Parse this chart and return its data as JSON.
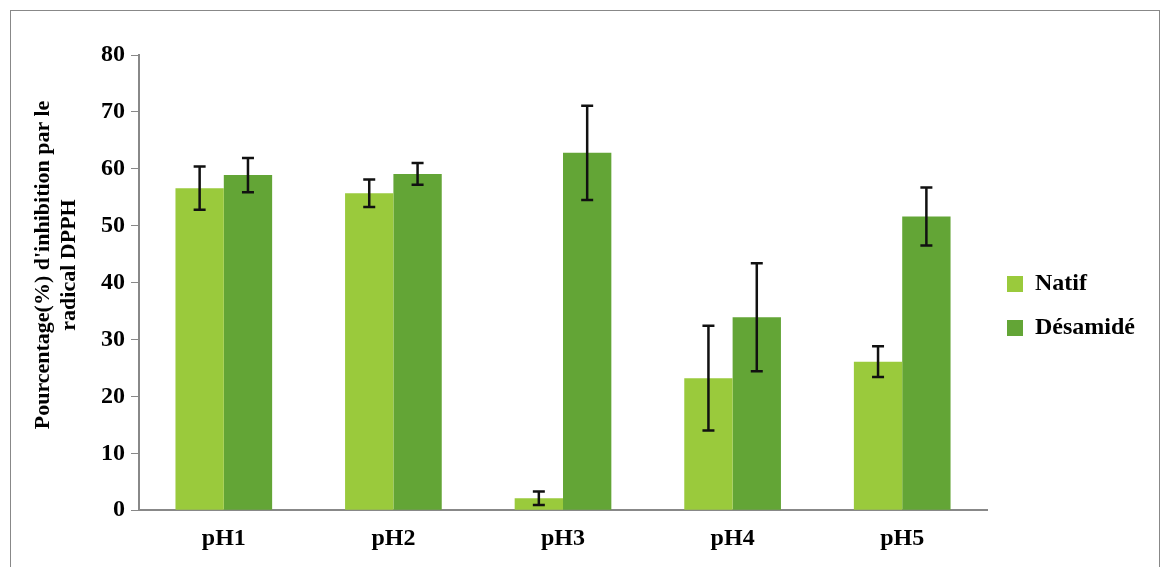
{
  "chart_data": {
    "type": "bar",
    "ylabel": "Pourcentage(%) d'inhibition par le radical DPPH",
    "categories": [
      "pH1",
      "pH2",
      "pH3",
      "pH4",
      "pH5"
    ],
    "series": [
      {
        "name": "Natif",
        "color": "#9aca3c",
        "values": [
          56.6,
          55.7,
          2.1,
          23.2,
          26.1
        ],
        "errors": [
          3.8,
          2.4,
          1.2,
          9.2,
          2.7
        ]
      },
      {
        "name": "Désamidé",
        "color": "#63a536",
        "values": [
          58.9,
          59.1,
          62.8,
          33.9,
          51.6
        ],
        "errors": [
          3,
          1.9,
          8.3,
          9.5,
          5.1
        ]
      }
    ],
    "ylim": [
      0,
      80
    ],
    "yticks": [
      0,
      10,
      20,
      30,
      40,
      50,
      60,
      70,
      80
    ],
    "grid": false,
    "legend": "right"
  }
}
